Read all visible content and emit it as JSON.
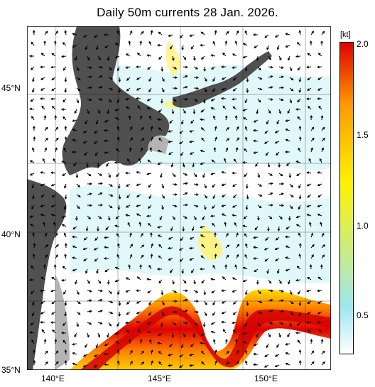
{
  "title": "Daily 50m currents 28 Jan. 2026.",
  "axes": {
    "y_ticks": [
      "45°N",
      "40°N",
      "35°N"
    ],
    "x_ticks": [
      "140°E",
      "145°E",
      "150°E"
    ]
  },
  "colorbar": {
    "unit": "[kt]",
    "tick_labels": [
      "2.0",
      "1.5",
      "1.0",
      "0.5"
    ],
    "colors": [
      "#ffffff",
      "#9ee7ef",
      "#fff200",
      "#ff9a00",
      "#e00000"
    ]
  },
  "map_colors": {
    "land": "#505050",
    "shelf": "#b4b4b4",
    "sea": "#ffffff"
  }
}
